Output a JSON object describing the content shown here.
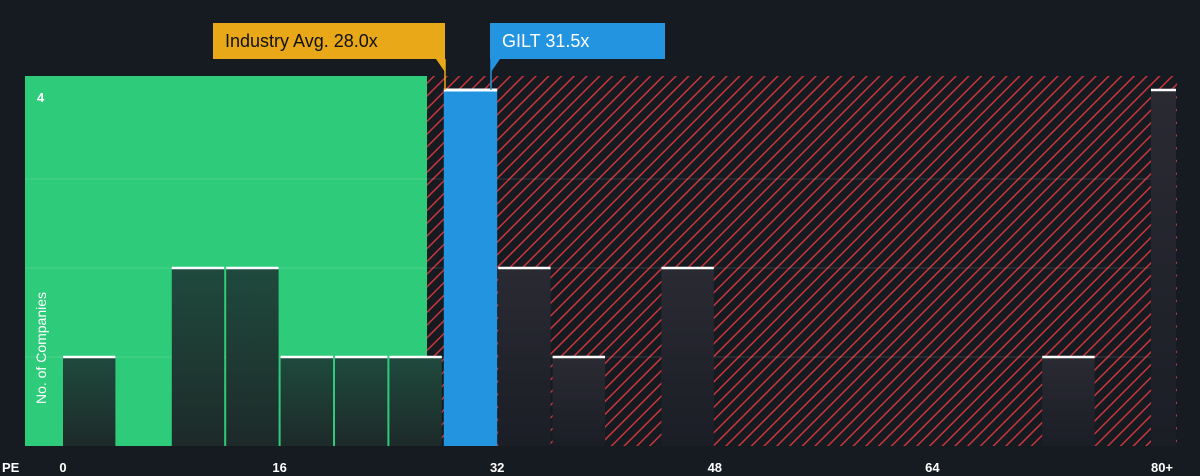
{
  "chart_data": {
    "type": "bar",
    "x_axis_label": "PE",
    "y_axis_label": "No. of Companies",
    "x_ticks": [
      "0",
      "16",
      "32",
      "48",
      "64",
      "80+"
    ],
    "y_ticks": [
      "4"
    ],
    "xlim": [
      0,
      81
    ],
    "ylim": [
      0,
      4.15
    ],
    "bin_width": 4,
    "bins": [
      {
        "x_start": 0,
        "x_end": 4,
        "count": 1
      },
      {
        "x_start": 8,
        "x_end": 12,
        "count": 2
      },
      {
        "x_start": 12,
        "x_end": 16,
        "count": 2
      },
      {
        "x_start": 16,
        "x_end": 20,
        "count": 1
      },
      {
        "x_start": 20,
        "x_end": 24,
        "count": 1
      },
      {
        "x_start": 24,
        "x_end": 28,
        "count": 1
      },
      {
        "x_start": 28,
        "x_end": 32,
        "count": 4,
        "highlight": true
      },
      {
        "x_start": 32,
        "x_end": 36,
        "count": 2
      },
      {
        "x_start": 36,
        "x_end": 40,
        "count": 1
      },
      {
        "x_start": 44,
        "x_end": 48,
        "count": 2
      },
      {
        "x_start": 72,
        "x_end": 76,
        "count": 1
      },
      {
        "x_start": 80,
        "x_end": 84,
        "count": 4
      }
    ],
    "industry_avg": {
      "value": 28.0,
      "label": "Industry Avg. 28.0x"
    },
    "company": {
      "name": "GILT",
      "value": 31.5,
      "label": "GILT 31.5x"
    },
    "fair_zone_end": 27.0,
    "colors": {
      "background": "#161b22",
      "fair_zone": "#2ecc7a",
      "overvalued_stripe": "#c9353c",
      "bar_dark": "#1e3a33",
      "highlight_bar": "#2394e0",
      "industry_callout": "#e8a817",
      "company_callout": "#2394e0",
      "cap_line": "#ffffff"
    }
  }
}
